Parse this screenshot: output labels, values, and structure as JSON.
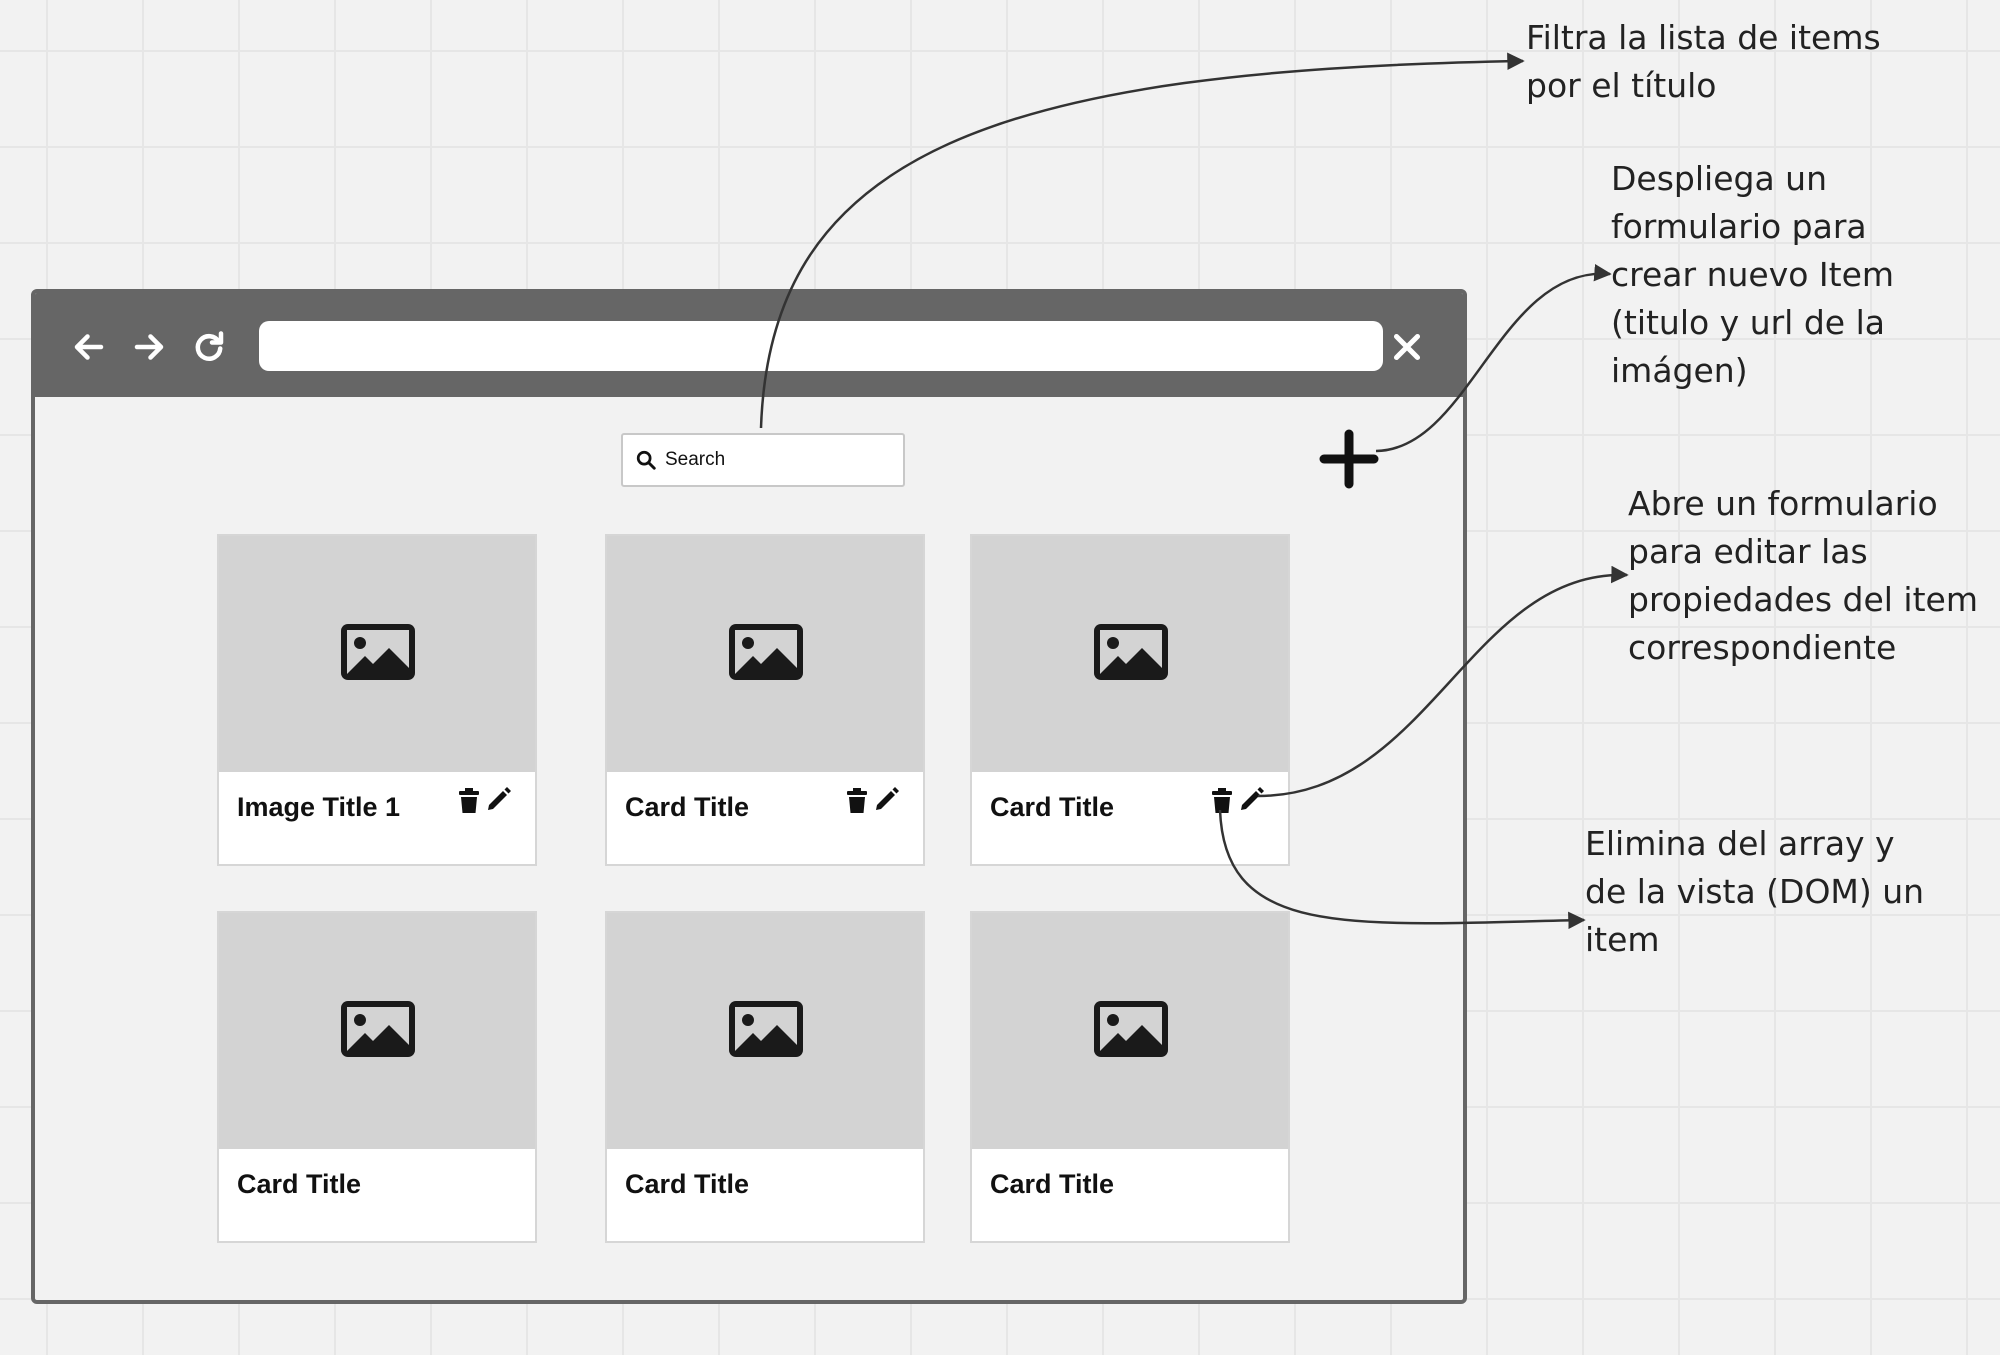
{
  "browser": {
    "nav_icons": [
      "arrow-left-icon",
      "arrow-right-icon",
      "refresh-icon"
    ],
    "close_icon": "close-icon",
    "address_value": ""
  },
  "search": {
    "placeholder": "Search",
    "icon": "search-icon"
  },
  "add_button": {
    "icon": "plus-icon"
  },
  "cards": [
    {
      "title": "Image Title 1",
      "image_icon": "image-icon",
      "has_actions": true
    },
    {
      "title": "Card Title",
      "image_icon": "image-icon",
      "has_actions": true
    },
    {
      "title": "Card Title",
      "image_icon": "image-icon",
      "has_actions": true
    },
    {
      "title": "Card Title",
      "image_icon": "image-icon",
      "has_actions": false
    },
    {
      "title": "Card Title",
      "image_icon": "image-icon",
      "has_actions": false
    },
    {
      "title": "Card Title",
      "image_icon": "image-icon",
      "has_actions": false
    }
  ],
  "annotations": {
    "filter": [
      "Filtra la lista de items",
      "por el título"
    ],
    "create": [
      "Despliega un",
      "formulario para",
      "crear nuevo Item",
      "(titulo y url de la",
      "imágen)"
    ],
    "edit": [
      "Abre un formulario",
      "para editar las",
      "propiedades del item",
      "correspondiente"
    ],
    "delete": [
      "Elimina del array y",
      "de la vista (DOM) un",
      "item"
    ]
  },
  "colors": {
    "background": "#f2f2f2",
    "browser_frame": "#666666",
    "image_placeholder": "#d3d3d3",
    "connector": "#333333"
  }
}
